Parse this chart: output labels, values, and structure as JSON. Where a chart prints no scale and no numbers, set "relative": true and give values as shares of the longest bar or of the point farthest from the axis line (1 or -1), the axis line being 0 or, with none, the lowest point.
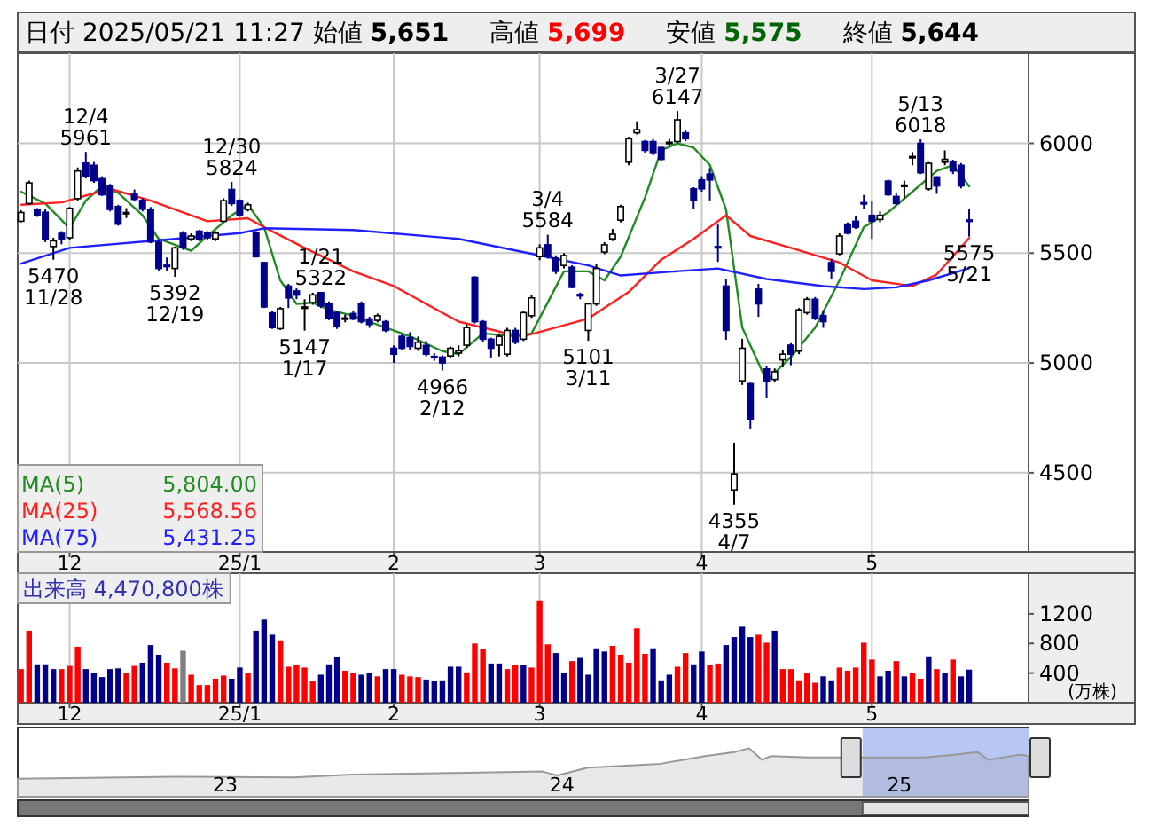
{
  "chart_data": [
    {
      "type": "candlestick",
      "title": "日付 2025/05/21 11:27 始値 5,651 高値 5,699 安値 5,575 終値 5,644",
      "categories": [
        null,
        null,
        null,
        null,
        null,
        null,
        "12",
        null,
        null,
        null,
        null,
        null,
        null,
        null,
        null,
        null,
        null,
        null,
        null,
        null,
        null,
        null,
        null,
        null,
        null,
        null,
        null,
        "25/1",
        null,
        null,
        null,
        null,
        null,
        null,
        null,
        null,
        null,
        null,
        null,
        null,
        null,
        null,
        null,
        null,
        null,
        null,
        "2",
        null,
        null,
        null,
        null,
        null,
        null,
        null,
        null,
        null,
        null,
        null,
        null,
        null,
        null,
        null,
        null,
        null,
        "3",
        null,
        null,
        null,
        null,
        null,
        null,
        null,
        null,
        null,
        null,
        null,
        null,
        null,
        null,
        null,
        null,
        null,
        null,
        null,
        "4",
        null,
        null,
        null,
        null,
        null,
        null,
        null,
        null,
        null,
        null,
        null,
        null,
        null,
        null,
        null,
        null,
        null,
        null,
        null,
        null,
        "5",
        null,
        null,
        null,
        null,
        null,
        null,
        null,
        null,
        null,
        null,
        null,
        null
      ],
      "ohlc": [
        [
          5645,
          5695,
          5640,
          5685
        ],
        [
          5726,
          5830,
          5720,
          5820
        ],
        [
          5699,
          5705,
          5665,
          5672
        ],
        [
          5686,
          5700,
          5550,
          5565
        ],
        [
          5530,
          5570,
          5470,
          5556
        ],
        [
          5590,
          5600,
          5540,
          5565
        ],
        [
          5570,
          5710,
          5560,
          5704
        ],
        [
          5748,
          5890,
          5740,
          5874
        ],
        [
          5910,
          5961,
          5840,
          5850
        ],
        [
          5900,
          5915,
          5820,
          5830
        ],
        [
          5839,
          5850,
          5760,
          5766
        ],
        [
          5806,
          5815,
          5690,
          5699
        ],
        [
          5712,
          5720,
          5625,
          5632
        ],
        [
          5680,
          5705,
          5660,
          5685
        ],
        [
          5770,
          5790,
          5735,
          5745
        ],
        [
          5740,
          5750,
          5690,
          5700
        ],
        [
          5699,
          5710,
          5545,
          5551
        ],
        [
          5550,
          5560,
          5420,
          5430
        ],
        [
          5445,
          5480,
          5420,
          5440
        ],
        [
          5430,
          5530,
          5392,
          5524
        ],
        [
          5590,
          5600,
          5515,
          5524
        ],
        [
          5565,
          5590,
          5555,
          5578
        ],
        [
          5600,
          5605,
          5555,
          5565
        ],
        [
          5595,
          5600,
          5560,
          5570
        ],
        [
          5565,
          5600,
          5555,
          5591
        ],
        [
          5645,
          5750,
          5640,
          5739
        ],
        [
          5790,
          5824,
          5715,
          5726
        ],
        [
          5740,
          5745,
          5665,
          5672
        ],
        [
          5699,
          5730,
          5690,
          5720
        ],
        [
          5591,
          5600,
          5480,
          5484
        ],
        [
          5457,
          5460,
          5250,
          5255
        ],
        [
          5228,
          5235,
          5155,
          5161
        ],
        [
          5156,
          5255,
          5150,
          5247
        ],
        [
          5350,
          5360,
          5250,
          5296
        ],
        [
          5328,
          5340,
          5290,
          5309
        ],
        [
          5250,
          5290,
          5147,
          5255
        ],
        [
          5275,
          5320,
          5265,
          5310
        ],
        [
          5320,
          5322,
          5250,
          5260
        ],
        [
          5269,
          5280,
          5195,
          5202
        ],
        [
          5229,
          5235,
          5155,
          5165
        ],
        [
          5200,
          5220,
          5185,
          5205
        ],
        [
          5225,
          5235,
          5195,
          5200
        ],
        [
          5269,
          5280,
          5180,
          5188
        ],
        [
          5200,
          5210,
          5160,
          5175
        ],
        [
          5194,
          5225,
          5185,
          5215
        ],
        [
          5188,
          5195,
          5140,
          5148
        ],
        [
          5067,
          5080,
          5000,
          5040
        ],
        [
          5121,
          5130,
          5060,
          5067
        ],
        [
          5115,
          5140,
          5060,
          5075
        ],
        [
          5067,
          5120,
          5055,
          5094
        ],
        [
          5080,
          5100,
          5030,
          5040
        ],
        [
          5030,
          5045,
          5010,
          5025
        ],
        [
          5027,
          5035,
          4966,
          5000
        ],
        [
          5032,
          5075,
          5025,
          5067
        ],
        [
          5045,
          5080,
          5030,
          5055
        ],
        [
          5081,
          5175,
          5070,
          5161
        ],
        [
          5390,
          5395,
          5180,
          5188
        ],
        [
          5188,
          5195,
          5095,
          5108
        ],
        [
          5108,
          5115,
          5025,
          5067
        ],
        [
          5081,
          5135,
          5030,
          5121
        ],
        [
          5040,
          5160,
          5030,
          5148
        ],
        [
          5148,
          5160,
          5085,
          5094
        ],
        [
          5108,
          5235,
          5100,
          5229
        ],
        [
          5215,
          5310,
          5205,
          5296
        ],
        [
          5484,
          5540,
          5468,
          5524
        ],
        [
          5538,
          5584,
          5475,
          5484
        ],
        [
          5478,
          5490,
          5405,
          5417
        ],
        [
          5444,
          5500,
          5430,
          5489
        ],
        [
          5436,
          5445,
          5340,
          5344
        ],
        [
          5312,
          5320,
          5290,
          5305
        ],
        [
          5148,
          5275,
          5101,
          5269
        ],
        [
          5269,
          5450,
          5260,
          5430
        ],
        [
          5505,
          5550,
          5495,
          5538
        ],
        [
          5565,
          5610,
          5555,
          5586
        ],
        [
          5650,
          5720,
          5640,
          5712
        ],
        [
          5914,
          6030,
          5900,
          6021
        ],
        [
          6048,
          6100,
          6040,
          6062
        ],
        [
          6008,
          6015,
          5955,
          5968
        ],
        [
          6008,
          6020,
          5945,
          5954
        ],
        [
          5981,
          5990,
          5920,
          5927
        ],
        [
          6000,
          6020,
          5985,
          6005
        ],
        [
          6008,
          6147,
          6000,
          6107
        ],
        [
          6048,
          6060,
          6010,
          6021
        ],
        [
          5793,
          5800,
          5700,
          5739
        ],
        [
          5833,
          5850,
          5780,
          5793
        ],
        [
          5860,
          5887,
          5740,
          5833
        ],
        [
          5530,
          5630,
          5460,
          5525
        ],
        [
          5350,
          5380,
          5105,
          5148
        ],
        [
          4422,
          4637,
          4355,
          4495
        ],
        [
          4919,
          5110,
          4900,
          5067
        ],
        [
          4906,
          4910,
          4700,
          4745
        ],
        [
          5336,
          5360,
          5210,
          5269
        ],
        [
          4973,
          4985,
          4839,
          4919
        ],
        [
          4925,
          4975,
          4915,
          4960
        ],
        [
          5014,
          5060,
          4980,
          5040
        ],
        [
          5081,
          5090,
          4990,
          5040
        ],
        [
          5054,
          5250,
          5040,
          5242
        ],
        [
          5229,
          5300,
          5220,
          5290
        ],
        [
          5290,
          5300,
          5195,
          5202
        ],
        [
          5215,
          5240,
          5160,
          5188
        ],
        [
          5457,
          5475,
          5380,
          5417
        ],
        [
          5497,
          5590,
          5490,
          5578
        ],
        [
          5632,
          5640,
          5585,
          5591
        ],
        [
          5645,
          5670,
          5610,
          5618
        ],
        [
          5730,
          5765,
          5700,
          5728
        ],
        [
          5672,
          5739,
          5565,
          5645
        ],
        [
          5653,
          5690,
          5640,
          5672
        ],
        [
          5828,
          5835,
          5760,
          5766
        ],
        [
          5758,
          5775,
          5720,
          5726
        ],
        [
          5806,
          5830,
          5750,
          5810
        ],
        [
          5935,
          5960,
          5900,
          5940
        ],
        [
          6000,
          6018,
          5860,
          5866
        ],
        [
          5793,
          5915,
          5785,
          5909
        ],
        [
          5847,
          5850,
          5770,
          5806
        ],
        [
          5914,
          5968,
          5900,
          5927
        ],
        [
          5914,
          5925,
          5860,
          5874
        ],
        [
          5900,
          5910,
          5795,
          5806
        ],
        [
          5651,
          5699,
          5575,
          5644
        ]
      ],
      "series": [
        {
          "type": "line",
          "name": "MA(5) 5,804.00",
          "color": "#228b22",
          "values": [
            5780,
            null,
            null,
            5726,
            null,
            null,
            5613,
            null,
            5739,
            null,
            5806,
            null,
            5774,
            null,
            null,
            5672,
            null,
            5565,
            null,
            null,
            null,
            5511,
            null,
            5578,
            null,
            null,
            5672,
            null,
            5720,
            null,
            5618,
            null,
            5376,
            null,
            5269,
            null,
            5274,
            null,
            5242,
            null,
            null,
            5215,
            null,
            5188,
            null,
            null,
            null,
            null,
            5121,
            null,
            null,
            null,
            5054,
            null,
            5040,
            null,
            null,
            5134,
            null,
            null,
            null,
            5121,
            null,
            5134,
            null,
            null,
            null,
            5417,
            null,
            null,
            5417,
            null,
            5376,
            null,
            5484,
            null,
            null,
            5753,
            null,
            5968,
            null,
            6000,
            null,
            5980,
            null,
            5901,
            null,
            5699,
            null,
            5161,
            null,
            null,
            4919,
            null,
            null,
            5027,
            null,
            null,
            5161,
            null,
            null,
            5376,
            null,
            null,
            5618,
            null,
            null,
            5686,
            null,
            null,
            5780,
            null,
            null,
            5874,
            null,
            5901,
            null,
            5804
          ]
        },
        {
          "type": "line",
          "name": "MA(25) 5,568.56",
          "color": "#ff2020",
          "values": [
            5720,
            null,
            null,
            null,
            null,
            5731,
            null,
            null,
            null,
            null,
            null,
            5793,
            null,
            null,
            null,
            null,
            5739,
            null,
            null,
            null,
            null,
            null,
            null,
            5645,
            null,
            null,
            null,
            null,
            5659,
            null,
            5618,
            null,
            null,
            null,
            null,
            5524,
            null,
            null,
            null,
            null,
            null,
            5417,
            null,
            null,
            null,
            null,
            5350,
            null,
            null,
            null,
            null,
            null,
            null,
            null,
            5188,
            null,
            null,
            null,
            null,
            null,
            5134,
            null,
            5121,
            null,
            null,
            null,
            null,
            null,
            null,
            null,
            5202,
            null,
            null,
            null,
            null,
            5323,
            null,
            null,
            null,
            5470,
            null,
            null,
            null,
            5565,
            null,
            null,
            null,
            5672,
            null,
            null,
            5578,
            null,
            null,
            null,
            null,
            5524,
            null,
            null,
            null,
            null,
            null,
            5457,
            null,
            null,
            null,
            5376,
            null,
            null,
            null,
            null,
            5350,
            null,
            null,
            5403,
            null,
            null,
            null,
            5569
          ]
        },
        {
          "type": "line",
          "name": "MA(75) 5,431.25",
          "color": "#2020ff",
          "values": [
            5452,
            null,
            null,
            null,
            null,
            null,
            5524,
            null,
            null,
            null,
            null,
            null,
            null,
            null,
            null,
            null,
            null,
            null,
            null,
            5565,
            null,
            null,
            null,
            null,
            null,
            null,
            null,
            5591,
            null,
            null,
            5613,
            null,
            null,
            null,
            null,
            null,
            null,
            null,
            null,
            null,
            null,
            5605,
            null,
            null,
            null,
            null,
            null,
            null,
            null,
            null,
            null,
            null,
            null,
            null,
            5565,
            null,
            null,
            null,
            null,
            null,
            null,
            null,
            null,
            5497,
            null,
            null,
            null,
            null,
            null,
            null,
            5444,
            null,
            null,
            null,
            5398,
            null,
            null,
            null,
            null,
            null,
            5415,
            null,
            null,
            null,
            null,
            null,
            5430,
            null,
            null,
            null,
            null,
            null,
            5382,
            null,
            null,
            null,
            null,
            null,
            null,
            5350,
            null,
            null,
            null,
            null,
            5336,
            null,
            null,
            null,
            5344,
            null,
            null,
            null,
            5376,
            null,
            null,
            null,
            null,
            5431
          ]
        }
      ],
      "annotations": [
        {
          "text": "5470\n11/28",
          "y": 5470
        },
        {
          "text": "12/4\n5961",
          "y": 5961
        },
        {
          "text": "5392\n12/19",
          "y": 5392
        },
        {
          "text": "12/30\n5824",
          "y": 5824
        },
        {
          "text": "5147\n1/17",
          "y": 5147
        },
        {
          "text": "1/21\n5322",
          "y": 5322
        },
        {
          "text": "4966\n2/12",
          "y": 4966
        },
        {
          "text": "3/4\n5584",
          "y": 5584
        },
        {
          "text": "5101\n3/11",
          "y": 5101
        },
        {
          "text": "3/27\n6147",
          "y": 6147
        },
        {
          "text": "4355\n4/7",
          "y": 4355
        },
        {
          "text": "5/13\n6018",
          "y": 6018
        },
        {
          "text": "5575\n5/21",
          "y": 5575
        }
      ],
      "ylim": [
        4140,
        6410
      ],
      "yticks": [
        4500,
        5000,
        5500,
        6000
      ],
      "grid": true
    },
    {
      "type": "bar",
      "title": "出来高 4,470,800株",
      "ylabel": "(万株)",
      "categories": [
        null,
        null,
        null,
        null,
        null,
        null,
        "12",
        null,
        null,
        null,
        null,
        null,
        null,
        null,
        null,
        null,
        null,
        null,
        null,
        null,
        null,
        null,
        null,
        null,
        null,
        null,
        null,
        "25/1",
        null,
        null,
        null,
        null,
        null,
        null,
        null,
        null,
        null,
        null,
        null,
        null,
        null,
        null,
        null,
        null,
        null,
        null,
        "2",
        null,
        null,
        null,
        null,
        null,
        null,
        null,
        null,
        null,
        null,
        null,
        null,
        null,
        null,
        null,
        null,
        null,
        "3",
        null,
        null,
        null,
        null,
        null,
        null,
        null,
        null,
        null,
        null,
        null,
        null,
        null,
        null,
        null,
        null,
        null,
        null,
        null,
        "4",
        null,
        null,
        null,
        null,
        null,
        null,
        null,
        null,
        null,
        null,
        null,
        null,
        null,
        null,
        null,
        null,
        null,
        null,
        null,
        null,
        "5",
        null,
        null,
        null,
        null,
        null,
        null,
        null,
        null,
        null,
        null,
        null,
        null
      ],
      "values": [
        454,
        972,
        518,
        518,
        454,
        454,
        497,
        756,
        454,
        400,
        346,
        454,
        464,
        400,
        497,
        540,
        778,
        648,
        540,
        464,
        702,
        378,
        238,
        238,
        324,
        367,
        324,
        475,
        400,
        972,
        1123,
        918,
        842,
        486,
        508,
        475,
        292,
        378,
        518,
        616,
        432,
        400,
        378,
        400,
        356,
        454,
        454,
        378,
        356,
        346,
        313,
        292,
        302,
        486,
        486,
        410,
        799,
        724,
        529,
        529,
        454,
        508,
        508,
        475,
        1382,
        788,
        670,
        400,
        562,
        605,
        378,
        734,
        691,
        767,
        648,
        540,
        1004,
        659,
        734,
        302,
        378,
        486,
        670,
        518,
        691,
        508,
        529,
        778,
        886,
        1026,
        886,
        918,
        810,
        972,
        454,
        454,
        302,
        400,
        270,
        356,
        302,
        475,
        432,
        475,
        810,
        583,
        356,
        432,
        562,
        356,
        400,
        324,
        626,
        454,
        400,
        583,
        356,
        447
      ],
      "colors": [
        "#ff0000",
        "#ff0000",
        "#00008b",
        "#00008b",
        "#00008b",
        "#ff0000",
        "#ff0000",
        "#ff0000",
        "#00008b",
        "#00008b",
        "#00008b",
        "#00008b",
        "#00008b",
        "#ff0000",
        "#ff0000",
        "#00008b",
        "#00008b",
        "#00008b",
        "#ff0000",
        "#ff0000",
        "#808080",
        "#ff0000",
        "#ff0000",
        "#ff0000",
        "#ff0000",
        "#ff0000",
        "#00008b",
        "#00008b",
        "#ff0000",
        "#00008b",
        "#00008b",
        "#00008b",
        "#ff0000",
        "#ff0000",
        "#ff0000",
        "#ff0000",
        "#ff0000",
        "#00008b",
        "#00008b",
        "#00008b",
        "#ff0000",
        "#ff0000",
        "#00008b",
        "#00008b",
        "#ff0000",
        "#00008b",
        "#00008b",
        "#ff0000",
        "#ff0000",
        "#ff0000",
        "#00008b",
        "#00008b",
        "#00008b",
        "#00008b",
        "#00008b",
        "#ff0000",
        "#ff0000",
        "#ff0000",
        "#00008b",
        "#00008b",
        "#ff0000",
        "#ff0000",
        "#00008b",
        "#ff0000",
        "#ff0000",
        "#ff0000",
        "#00008b",
        "#00008b",
        "#ff0000",
        "#00008b",
        "#00008b",
        "#00008b",
        "#00008b",
        "#ff0000",
        "#ff0000",
        "#ff0000",
        "#ff0000",
        "#ff0000",
        "#00008b",
        "#00008b",
        "#00008b",
        "#ff0000",
        "#ff0000",
        "#00008b",
        "#00008b",
        "#ff0000",
        "#ff0000",
        "#00008b",
        "#00008b",
        "#00008b",
        "#00008b",
        "#ff0000",
        "#ff0000",
        "#00008b",
        "#ff0000",
        "#ff0000",
        "#ff0000",
        "#ff0000",
        "#ff0000",
        "#00008b",
        "#00008b",
        "#ff0000",
        "#ff0000",
        "#ff0000",
        "#ff0000",
        "#ff0000",
        "#00008b",
        "#00008b",
        "#ff0000",
        "#00008b",
        "#ff0000",
        "#ff0000",
        "#00008b",
        "#ff0000",
        "#00008b",
        "#ff0000",
        "#00008b",
        "#00008b"
      ],
      "ylim": [
        0,
        1750
      ],
      "yticks": [
        400,
        800,
        1200
      ],
      "grid": "x"
    },
    {
      "type": "area",
      "relative": true,
      "x": [
        "2022-05-21",
        "2022-11-08",
        "2023-03-16",
        "2023-05-19",
        "2023-09-07",
        "2023-12-11",
        "2023-12-27",
        "2024-01-29",
        "2024-04-17",
        "2024-06-04",
        "2024-07-06",
        "2024-07-22",
        "2024-08-05",
        "2024-08-15",
        "2024-09-24",
        "2024-12-12",
        "2025-01-30",
        "2025-03-03",
        "2025-03-27",
        "2025-04-07",
        "2025-05-13",
        "2025-05-21"
      ],
      "series": [
        {
          "color": "#999999",
          "values": [
            0.37,
            0.41,
            0.4,
            0.46,
            0.49,
            0.52,
            0.44,
            0.6,
            0.68,
            0.84,
            0.92,
            1.0,
            0.76,
            0.84,
            0.81,
            0.81,
            0.81,
            0.87,
            0.92,
            0.76,
            0.87,
            0.84
          ]
        }
      ],
      "xlim": [
        "2022-05-21",
        "2025-05-21"
      ],
      "xticks": [
        {
          "value": "2023-01-01",
          "label": "23"
        },
        {
          "value": "2024-01-01",
          "label": "24"
        },
        {
          "value": "2025-01-01",
          "label": "25"
        }
      ],
      "bands": [
        {
          "axis": "x",
          "from": "2024-11-22",
          "to": "2025-05-21",
          "color": "#b8c6f4"
        }
      ]
    }
  ]
}
